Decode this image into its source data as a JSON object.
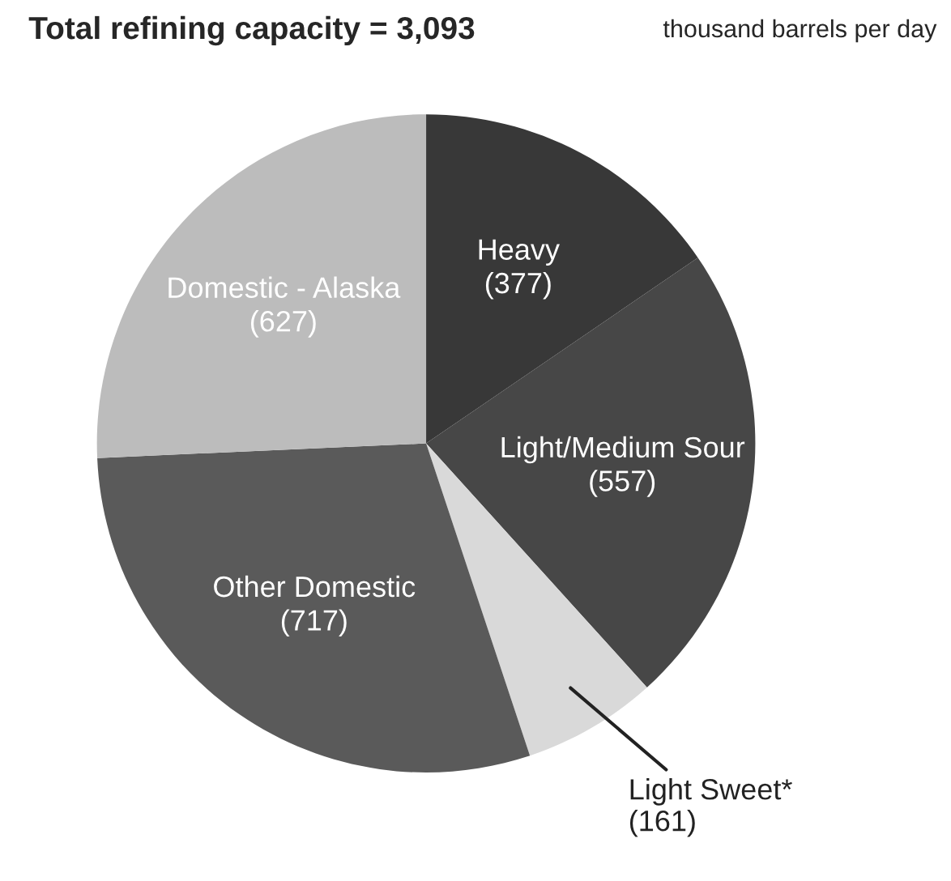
{
  "chart_data": {
    "type": "pie",
    "title": "Total refining capacity = 3,093",
    "subtitle": "thousand barrels per day",
    "categories": [
      "Heavy",
      "Light/Medium Sour",
      "Light Sweet*",
      "Other Domestic",
      "Domestic - Alaska"
    ],
    "values": [
      377,
      557,
      161,
      717,
      627
    ],
    "value_labels": [
      "(377)",
      "(557)",
      "(161)",
      "(717)",
      "(627)"
    ],
    "colors": [
      "#383838",
      "#474747",
      "#d9d9d9",
      "#5a5a5a",
      "#bcbcbc"
    ],
    "legend": false
  }
}
